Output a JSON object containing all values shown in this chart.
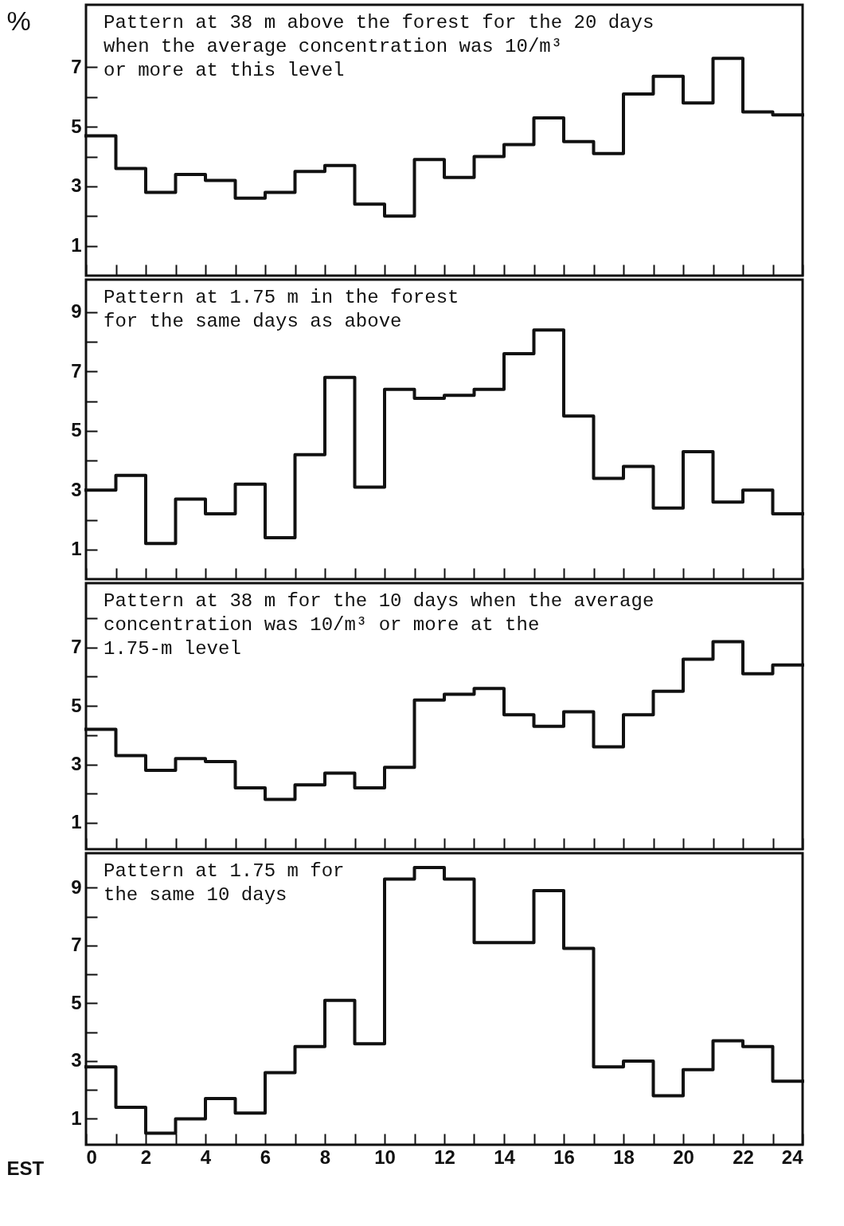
{
  "chart_data": [
    {
      "type": "histogram",
      "ylabel": "%",
      "annotations": [
        "Pattern at 38 m above the forest for the 20 days\nwhen the average concentration was 10/m³\nor more at this level"
      ],
      "bins": [
        0,
        1,
        2,
        3,
        4,
        5,
        6,
        7,
        8,
        9,
        10,
        11,
        12,
        13,
        14,
        15,
        16,
        17,
        18,
        19,
        20,
        21,
        22,
        23,
        24
      ],
      "series": [
        {
          "color": "#111111",
          "values": [
            4.7,
            3.6,
            2.8,
            3.4,
            3.2,
            2.6,
            2.8,
            3.5,
            3.7,
            2.4,
            2.0,
            3.9,
            3.3,
            4.0,
            4.4,
            5.3,
            4.5,
            4.1,
            6.1,
            6.7,
            5.8,
            7.3,
            5.5,
            5.4
          ]
        }
      ],
      "xlim": [
        0,
        24
      ],
      "xticks": [
        {
          "value": 0,
          "label": null
        },
        {
          "value": 1,
          "label": null
        },
        {
          "value": 2,
          "label": null
        },
        {
          "value": 3,
          "label": null
        },
        {
          "value": 4,
          "label": null
        },
        {
          "value": 5,
          "label": null
        },
        {
          "value": 6,
          "label": null
        },
        {
          "value": 7,
          "label": null
        },
        {
          "value": 8,
          "label": null
        },
        {
          "value": 9,
          "label": null
        },
        {
          "value": 10,
          "label": null
        },
        {
          "value": 11,
          "label": null
        },
        {
          "value": 12,
          "label": null
        },
        {
          "value": 13,
          "label": null
        },
        {
          "value": 14,
          "label": null
        },
        {
          "value": 15,
          "label": null
        },
        {
          "value": 16,
          "label": null
        },
        {
          "value": 17,
          "label": null
        },
        {
          "value": 18,
          "label": null
        },
        {
          "value": 19,
          "label": null
        },
        {
          "value": 20,
          "label": null
        },
        {
          "value": 21,
          "label": null
        },
        {
          "value": 22,
          "label": null
        },
        {
          "value": 23,
          "label": null
        },
        {
          "value": 24,
          "label": null
        }
      ],
      "ylim": [
        0,
        9.1
      ],
      "yticks": [
        1,
        {
          "value": 2,
          "label": null
        },
        3,
        {
          "value": 4,
          "label": null
        },
        5,
        {
          "value": 6,
          "label": null
        },
        7
      ],
      "tick_labels": "y"
    },
    {
      "type": "histogram",
      "annotations": [
        "Pattern at 1.75 m in the forest\nfor the same days as above"
      ],
      "bins": [
        0,
        1,
        2,
        3,
        4,
        5,
        6,
        7,
        8,
        9,
        10,
        11,
        12,
        13,
        14,
        15,
        16,
        17,
        18,
        19,
        20,
        21,
        22,
        23,
        24
      ],
      "series": [
        {
          "color": "#111111",
          "values": [
            3.0,
            3.5,
            1.2,
            2.7,
            2.2,
            3.2,
            1.4,
            4.2,
            6.8,
            3.1,
            6.4,
            6.1,
            6.2,
            6.4,
            7.6,
            8.4,
            5.5,
            3.4,
            3.8,
            2.4,
            4.3,
            2.6,
            3.0,
            2.2
          ]
        }
      ],
      "xlim": [
        0,
        24
      ],
      "xticks": [
        {
          "value": 0,
          "label": null
        },
        {
          "value": 1,
          "label": null
        },
        {
          "value": 2,
          "label": null
        },
        {
          "value": 3,
          "label": null
        },
        {
          "value": 4,
          "label": null
        },
        {
          "value": 5,
          "label": null
        },
        {
          "value": 6,
          "label": null
        },
        {
          "value": 7,
          "label": null
        },
        {
          "value": 8,
          "label": null
        },
        {
          "value": 9,
          "label": null
        },
        {
          "value": 10,
          "label": null
        },
        {
          "value": 11,
          "label": null
        },
        {
          "value": 12,
          "label": null
        },
        {
          "value": 13,
          "label": null
        },
        {
          "value": 14,
          "label": null
        },
        {
          "value": 15,
          "label": null
        },
        {
          "value": 16,
          "label": null
        },
        {
          "value": 17,
          "label": null
        },
        {
          "value": 18,
          "label": null
        },
        {
          "value": 19,
          "label": null
        },
        {
          "value": 20,
          "label": null
        },
        {
          "value": 21,
          "label": null
        },
        {
          "value": 22,
          "label": null
        },
        {
          "value": 23,
          "label": null
        },
        {
          "value": 24,
          "label": null
        }
      ],
      "ylim": [
        0,
        10.1
      ],
      "yticks": [
        1,
        {
          "value": 2,
          "label": null
        },
        3,
        {
          "value": 4,
          "label": null
        },
        5,
        {
          "value": 6,
          "label": null
        },
        7,
        {
          "value": 8,
          "label": null
        },
        9
      ],
      "tick_labels": "y"
    },
    {
      "type": "histogram",
      "annotations": [
        "Pattern at 38 m for the 10 days when the average\nconcentration was 10/m³ or more at the\n1.75-m level"
      ],
      "bins": [
        0,
        1,
        2,
        3,
        4,
        5,
        6,
        7,
        8,
        9,
        10,
        11,
        12,
        13,
        14,
        15,
        16,
        17,
        18,
        19,
        20,
        21,
        22,
        23,
        24
      ],
      "series": [
        {
          "color": "#111111",
          "values": [
            4.2,
            3.3,
            2.8,
            3.2,
            3.1,
            2.2,
            1.8,
            2.3,
            2.7,
            2.2,
            2.9,
            5.2,
            5.4,
            5.6,
            4.7,
            4.3,
            4.8,
            3.6,
            4.7,
            5.5,
            6.6,
            7.2,
            6.1,
            6.4
          ]
        }
      ],
      "xlim": [
        0,
        24
      ],
      "xticks": [
        {
          "value": 0,
          "label": null
        },
        {
          "value": 1,
          "label": null
        },
        {
          "value": 2,
          "label": null
        },
        {
          "value": 3,
          "label": null
        },
        {
          "value": 4,
          "label": null
        },
        {
          "value": 5,
          "label": null
        },
        {
          "value": 6,
          "label": null
        },
        {
          "value": 7,
          "label": null
        },
        {
          "value": 8,
          "label": null
        },
        {
          "value": 9,
          "label": null
        },
        {
          "value": 10,
          "label": null
        },
        {
          "value": 11,
          "label": null
        },
        {
          "value": 12,
          "label": null
        },
        {
          "value": 13,
          "label": null
        },
        {
          "value": 14,
          "label": null
        },
        {
          "value": 15,
          "label": null
        },
        {
          "value": 16,
          "label": null
        },
        {
          "value": 17,
          "label": null
        },
        {
          "value": 18,
          "label": null
        },
        {
          "value": 19,
          "label": null
        },
        {
          "value": 20,
          "label": null
        },
        {
          "value": 21,
          "label": null
        },
        {
          "value": 22,
          "label": null
        },
        {
          "value": 23,
          "label": null
        },
        {
          "value": 24,
          "label": null
        }
      ],
      "ylim": [
        0.1,
        9.2
      ],
      "yticks": [
        1,
        {
          "value": 2,
          "label": null
        },
        3,
        {
          "value": 4,
          "label": null
        },
        5,
        {
          "value": 6,
          "label": null
        },
        7,
        {
          "value": 8,
          "label": null
        }
      ],
      "tick_labels": "y"
    },
    {
      "type": "histogram",
      "xlabel": "EST",
      "annotations": [
        "Pattern at 1.75 m for\nthe same 10 days"
      ],
      "bins": [
        0,
        1,
        2,
        3,
        4,
        5,
        6,
        7,
        8,
        9,
        10,
        11,
        12,
        13,
        14,
        15,
        16,
        17,
        18,
        19,
        20,
        21,
        22,
        23,
        24
      ],
      "series": [
        {
          "color": "#111111",
          "values": [
            2.8,
            1.4,
            0.5,
            1.0,
            1.7,
            1.2,
            2.6,
            3.5,
            5.1,
            3.6,
            9.3,
            9.7,
            9.3,
            7.1,
            7.1,
            8.9,
            6.9,
            2.8,
            3.0,
            1.8,
            2.7,
            3.7,
            3.5,
            2.3
          ]
        }
      ],
      "xlim": [
        0,
        24
      ],
      "xticks": [
        0,
        {
          "value": 1,
          "label": null
        },
        2,
        {
          "value": 3,
          "label": null
        },
        4,
        {
          "value": 5,
          "label": null
        },
        6,
        {
          "value": 7,
          "label": null
        },
        8,
        {
          "value": 9,
          "label": null
        },
        10,
        {
          "value": 11,
          "label": null
        },
        12,
        {
          "value": 13,
          "label": null
        },
        14,
        {
          "value": 15,
          "label": null
        },
        16,
        {
          "value": 17,
          "label": null
        },
        18,
        {
          "value": 19,
          "label": null
        },
        20,
        {
          "value": 21,
          "label": null
        },
        22,
        {
          "value": 23,
          "label": null
        },
        24
      ],
      "ylim": [
        0.1,
        10.2
      ],
      "yticks": [
        1,
        {
          "value": 2,
          "label": null
        },
        3,
        {
          "value": 4,
          "label": null
        },
        5,
        {
          "value": 6,
          "label": null
        },
        7,
        {
          "value": 8,
          "label": null
        },
        9
      ]
    }
  ]
}
